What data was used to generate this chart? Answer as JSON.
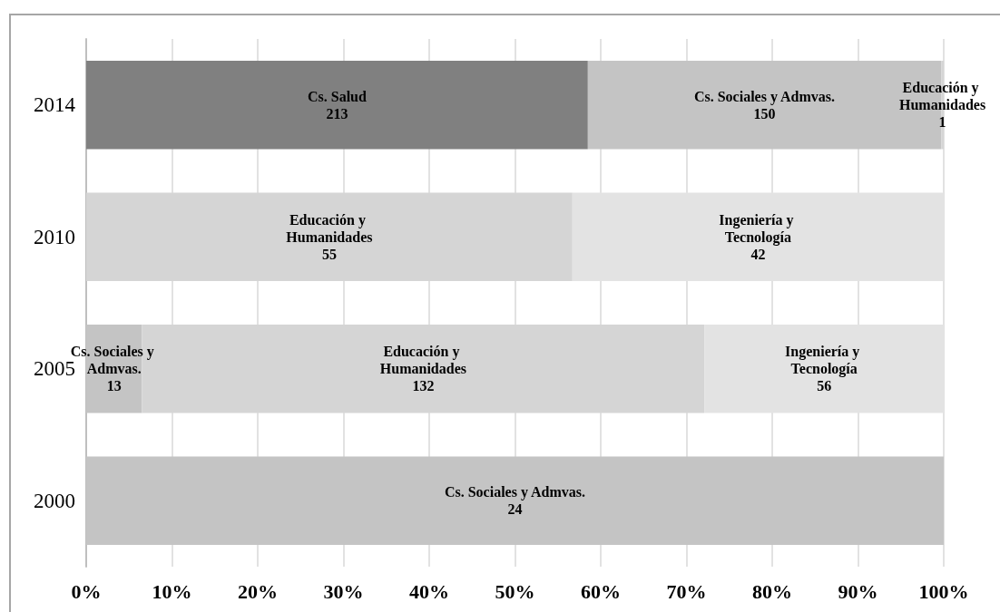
{
  "chart_data": {
    "type": "bar",
    "orientation": "horizontal",
    "stacked": true,
    "categories": [
      "2014",
      "2010",
      "2005",
      "2000"
    ],
    "series": [
      {
        "name": "Cs. Salud",
        "color": "#808080",
        "values": [
          58.5,
          null,
          null,
          null
        ]
      },
      {
        "name": "Cs. Sociales y Admvas.",
        "color": "#c4c4c4",
        "values": [
          41.2,
          null,
          6.5,
          100
        ]
      },
      {
        "name": "Educación y Humanidades",
        "color": "#d5d5d5",
        "values": [
          0.3,
          56.7,
          65.6,
          null
        ]
      },
      {
        "name": "Ingeniería y Tecnología",
        "color": "#e3e3e3",
        "values": [
          null,
          43.3,
          27.9,
          null
        ]
      }
    ],
    "xlim": [
      0,
      100
    ],
    "xticks": [
      {
        "value": 0,
        "label": "0%"
      },
      {
        "value": 10,
        "label": "10%"
      },
      {
        "value": 20,
        "label": "20%"
      },
      {
        "value": 30,
        "label": "30%"
      },
      {
        "value": 40,
        "label": "40%"
      },
      {
        "value": 50,
        "label": "50%"
      },
      {
        "value": 60,
        "label": "60%"
      },
      {
        "value": 70,
        "label": "70%"
      },
      {
        "value": 80,
        "label": "80%"
      },
      {
        "value": 90,
        "label": "90%"
      },
      {
        "value": 100,
        "label": "100%"
      }
    ],
    "annotations": [
      "213",
      "150",
      "1",
      "55",
      "42",
      "13",
      "132",
      "56",
      "24"
    ],
    "grid": "x"
  }
}
